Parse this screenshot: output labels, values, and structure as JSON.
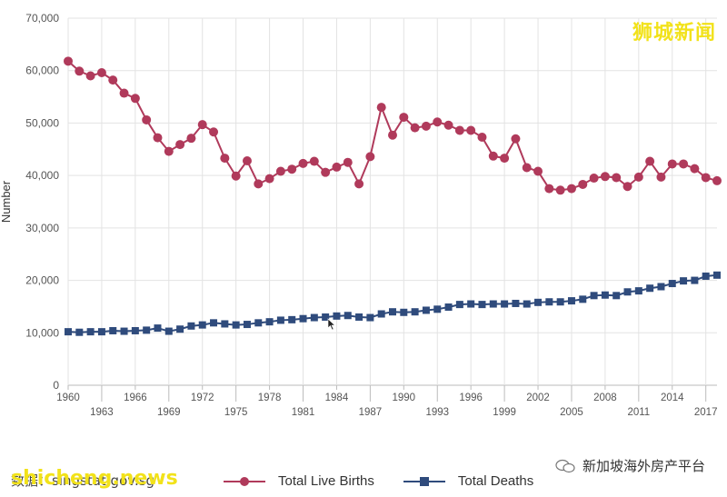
{
  "watermark_top": "狮城新闻",
  "watermark_bottom": "shicheng.news",
  "bottom_left_text": "数据：singstat.gov.sg",
  "wechat_account": "新加坡海外房产平台",
  "colors": {
    "births": "#b03a5b",
    "deaths": "#2f4b7c",
    "grid": "#e3e3e3",
    "axis_text": "#555555"
  },
  "chart_data": {
    "type": "line",
    "ylabel": "Number",
    "xlabel": "",
    "ylim": [
      0,
      70000
    ],
    "yticks": [
      0,
      10000,
      20000,
      30000,
      40000,
      50000,
      60000,
      70000
    ],
    "ytick_labels": [
      "0",
      "10,000",
      "20,000",
      "30,000",
      "40,000",
      "50,000",
      "60,000",
      "70,000"
    ],
    "xlim": [
      1960,
      2018
    ],
    "xticks_row1": [
      1960,
      1966,
      1972,
      1978,
      1984,
      1990,
      1996,
      2002,
      2008,
      2014
    ],
    "xticks_row2": [
      1963,
      1969,
      1975,
      1981,
      1987,
      1993,
      1999,
      2005,
      2011,
      2017
    ],
    "grid": true,
    "legend_position": "bottom",
    "x": [
      1960,
      1961,
      1962,
      1963,
      1964,
      1965,
      1966,
      1967,
      1968,
      1969,
      1970,
      1971,
      1972,
      1973,
      1974,
      1975,
      1976,
      1977,
      1978,
      1979,
      1980,
      1981,
      1982,
      1983,
      1984,
      1985,
      1986,
      1987,
      1988,
      1989,
      1990,
      1991,
      1992,
      1993,
      1994,
      1995,
      1996,
      1997,
      1998,
      1999,
      2000,
      2001,
      2002,
      2003,
      2004,
      2005,
      2006,
      2007,
      2008,
      2009,
      2010,
      2011,
      2012,
      2013,
      2014,
      2015,
      2016,
      2017,
      2018
    ],
    "series": [
      {
        "name": "Total Live Births",
        "marker": "circle",
        "values": [
          61800,
          59900,
          59000,
          59600,
          58200,
          55700,
          54700,
          50600,
          47200,
          44600,
          45900,
          47100,
          49700,
          48300,
          43300,
          39900,
          42800,
          38400,
          39400,
          40800,
          41200,
          42300,
          42700,
          40600,
          41600,
          42500,
          38400,
          43600,
          53000,
          47700,
          51100,
          49100,
          49400,
          50200,
          49600,
          48600,
          48600,
          47300,
          43700,
          43300,
          47000,
          41500,
          40800,
          37500,
          37200,
          37500,
          38300,
          39500,
          39800,
          39600,
          37900,
          39700,
          42700,
          39700,
          42200,
          42200,
          41300,
          39600,
          39000
        ]
      },
      {
        "name": "Total Deaths",
        "marker": "square",
        "values": [
          10200,
          10100,
          10200,
          10200,
          10400,
          10300,
          10400,
          10500,
          10900,
          10300,
          10700,
          11300,
          11500,
          11900,
          11700,
          11500,
          11600,
          11900,
          12100,
          12400,
          12500,
          12700,
          12900,
          13000,
          13200,
          13300,
          13000,
          12900,
          13600,
          14000,
          13900,
          14000,
          14300,
          14500,
          14900,
          15400,
          15500,
          15400,
          15500,
          15500,
          15600,
          15500,
          15800,
          15900,
          15900,
          16100,
          16400,
          17100,
          17200,
          17100,
          17800,
          18000,
          18500,
          18800,
          19400,
          19900,
          20000,
          20800,
          21000
        ]
      }
    ]
  }
}
